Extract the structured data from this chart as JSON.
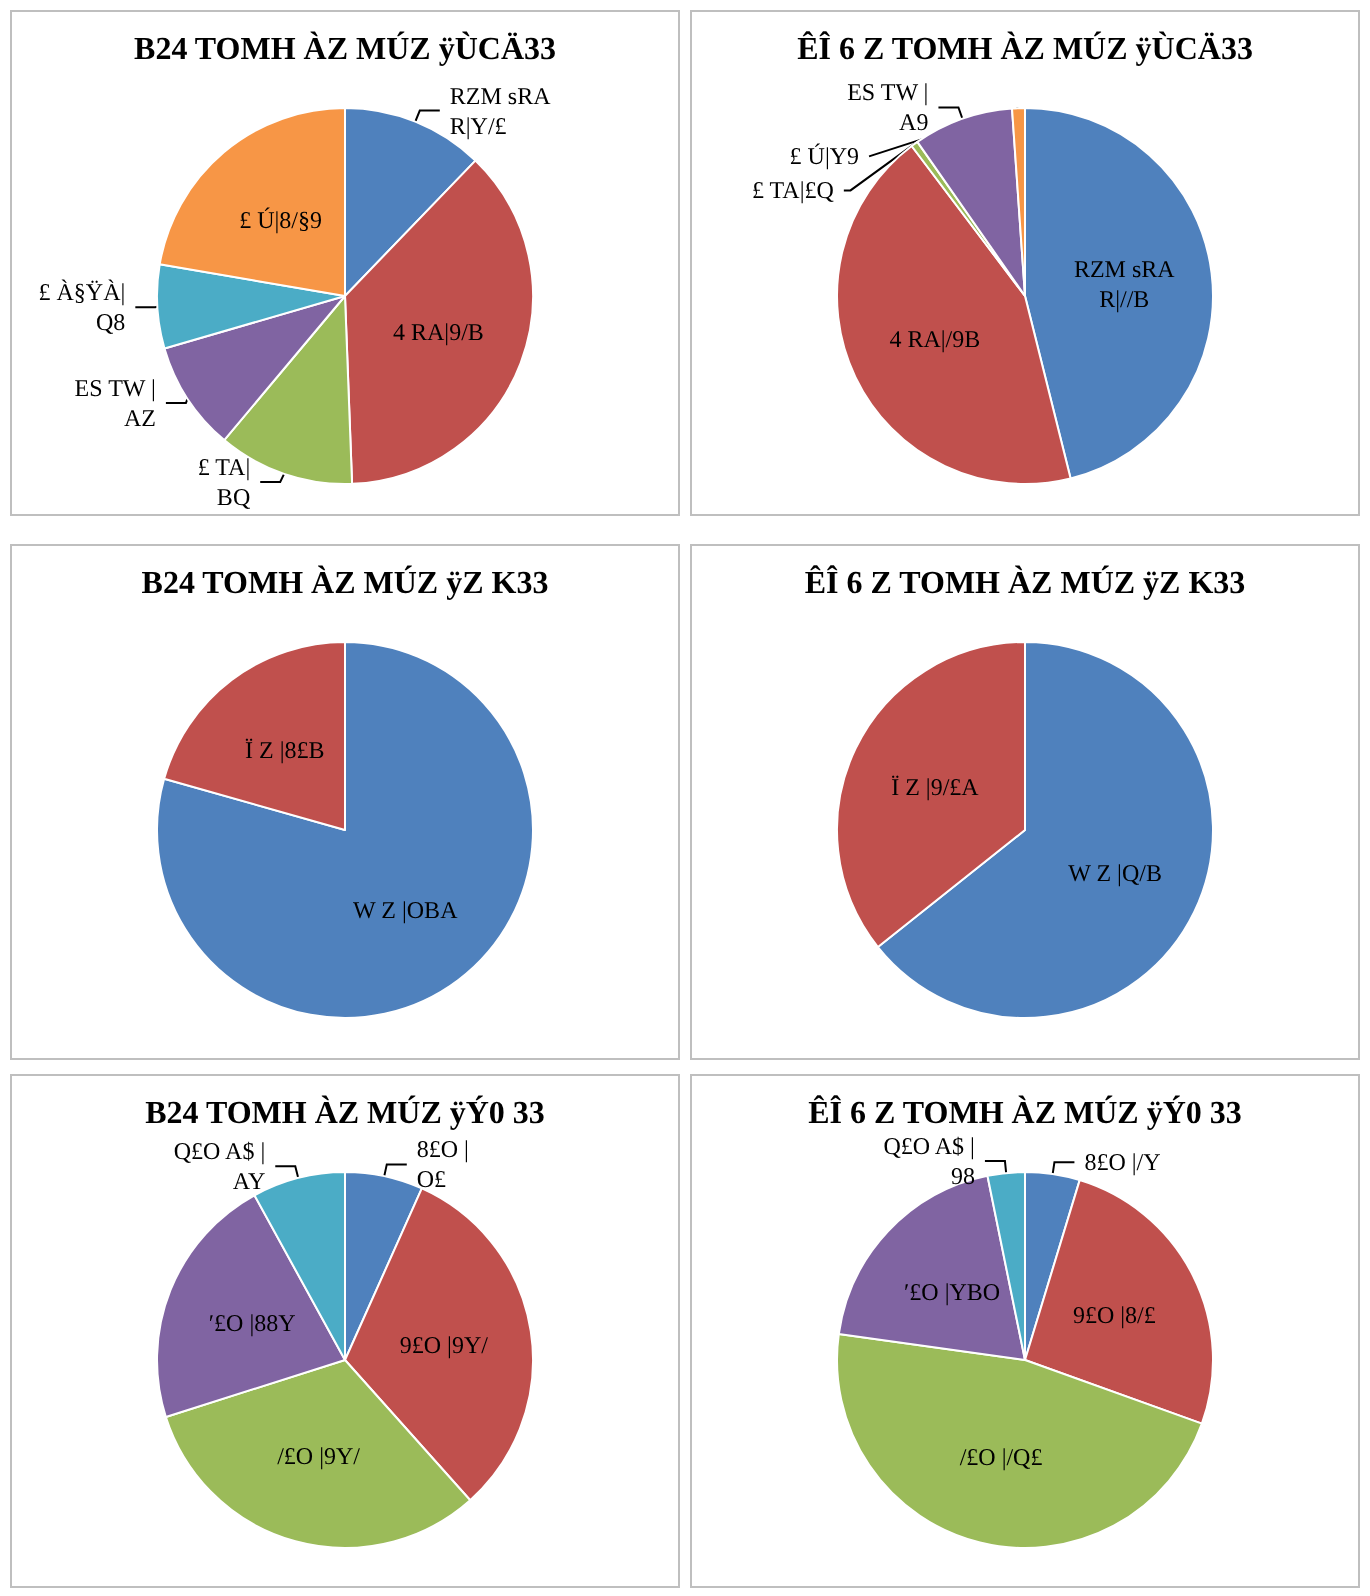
{
  "chart_data": [
    {
      "type": "pie",
      "title": "B24 TOMH ÀZ MÚZ ÿÙCÄ33",
      "categories": [
        "RZM sRA\nR|Y/£",
        "4 RA|9/B",
        "£ TA|\nBQ",
        "ES TW |\nAZ",
        "£ À§ŸÀ|\nQ8",
        "£ Ú|8/§9"
      ],
      "values": [
        12.2,
        37.2,
        11.7,
        9.4,
        7.2,
        22.3
      ],
      "colors": [
        "#4f81bd",
        "#c0504d",
        "#9bbb59",
        "#8064a2",
        "#4bacc6",
        "#f79646"
      ]
    },
    {
      "type": "pie",
      "title": "ÊÎ 6 Z TOMH ÀZ MÚZ ÿÙCÄ33",
      "categories": [
        "RZM sRA\nR|//B",
        "4 RA|/9B",
        "£ TA|£Q",
        "ES TW |\nA9",
        "£ Ú|Y9"
      ],
      "values": [
        46.1,
        43.6,
        0.6,
        8.6,
        1.1
      ],
      "colors": [
        "#4f81bd",
        "#c0504d",
        "#9bbb59",
        "#8064a2",
        "#f79646"
      ]
    },
    {
      "type": "pie",
      "title": "B24 TOMH ÀZ MÚZ ÿZ K33",
      "categories": [
        "W Z |OBA",
        "Ï Z |8£B"
      ],
      "values": [
        79.4,
        20.6
      ],
      "colors": [
        "#4f81bd",
        "#c0504d"
      ]
    },
    {
      "type": "pie",
      "title": "ÊÎ 6 Z TOMH ÀZ MÚZ ÿZ K33",
      "categories": [
        "W Z |Q/B",
        "Ï Z |9/£A"
      ],
      "values": [
        64.3,
        35.7
      ],
      "colors": [
        "#4f81bd",
        "#c0504d"
      ]
    },
    {
      "type": "pie",
      "title": "B24 TOMH ÀZ MÚZ ÿÝ0 33",
      "categories": [
        "8£O |\nO£",
        "9£O |9Y/",
        "/£O |9Y/",
        "ʹ£O |88Y",
        "Q£O A$ |\nAY"
      ],
      "values": [
        6.7,
        31.7,
        31.7,
        21.9,
        8.0
      ],
      "colors": [
        "#4f81bd",
        "#c0504d",
        "#9bbb59",
        "#8064a2",
        "#4bacc6"
      ]
    },
    {
      "type": "pie",
      "title": "ÊÎ 6 Z TOMH ÀZ MÚZ ÿÝ0 33",
      "categories": [
        "8£O |/Y",
        "9£O |8/£",
        "/£O |/Q£",
        "ʹ£O |YBO",
        "Q£O A$ |\n98"
      ],
      "values": [
        4.7,
        25.8,
        46.7,
        19.6,
        3.2
      ],
      "colors": [
        "#4f81bd",
        "#c0504d",
        "#9bbb59",
        "#8064a2",
        "#4bacc6"
      ]
    }
  ]
}
